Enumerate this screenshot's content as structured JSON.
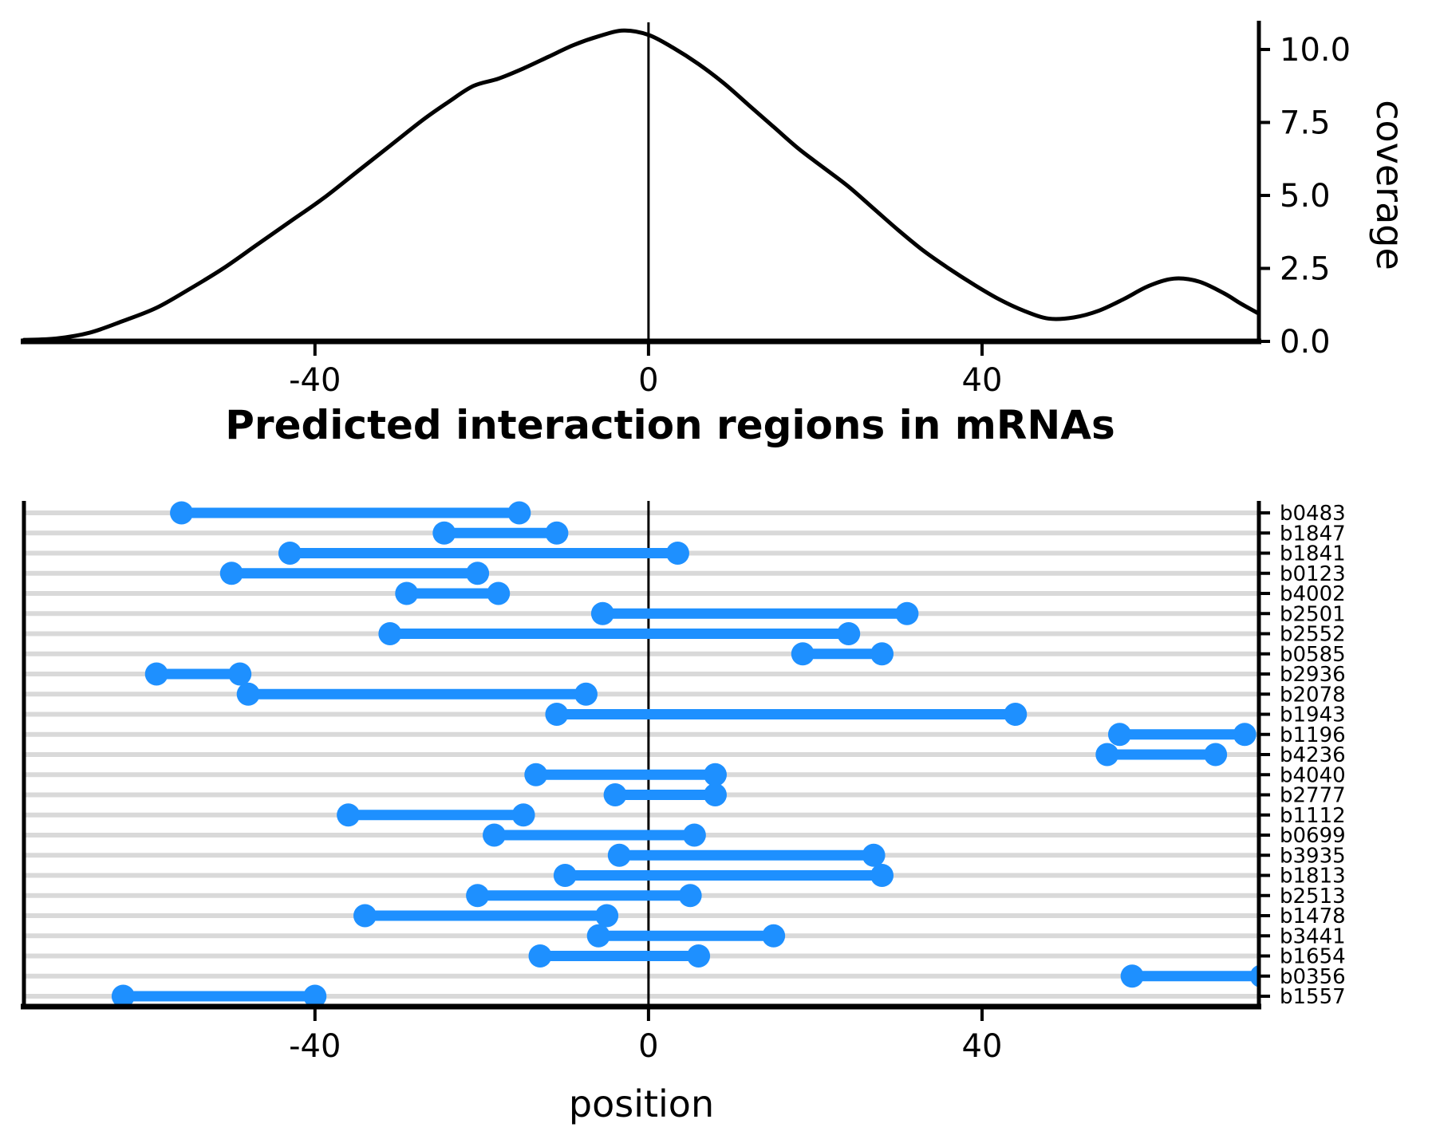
{
  "figure": {
    "background": "#ffffff"
  },
  "colors": {
    "segment_blue": "#1e90ff",
    "gridline_gray": "#d9d9d9",
    "axis_black": "#000000"
  },
  "chart_data": [
    {
      "type": "line",
      "name": "coverage-density",
      "title": "",
      "ylabel": "coverage",
      "xlim": [
        -74.9,
        73.2
      ],
      "ylim": [
        0,
        10.93
      ],
      "grid": false,
      "x_tick_values": [
        -40,
        0,
        40
      ],
      "x_tick_labels": [
        "-40",
        "0",
        "40"
      ],
      "y_tick_values": [
        0.0,
        2.5,
        5.0,
        7.5,
        10.0
      ],
      "y_tick_labels": [
        "0.0",
        "2.5",
        "5.0",
        "7.5",
        "10.0"
      ],
      "zero_line_x": 0,
      "x": [
        -74.9,
        -71,
        -67,
        -63,
        -59,
        -55,
        -51,
        -47,
        -43,
        -39,
        -35,
        -31,
        -27,
        -24,
        -21,
        -18,
        -15,
        -12,
        -9,
        -6,
        -3,
        0,
        3,
        6,
        9,
        12,
        15,
        18,
        21,
        24,
        27,
        30,
        33,
        36,
        39,
        42,
        45,
        48,
        51,
        54,
        57,
        60,
        63,
        66,
        69,
        71,
        73.2
      ],
      "y": [
        0.05,
        0.1,
        0.3,
        0.7,
        1.15,
        1.8,
        2.5,
        3.3,
        4.1,
        4.9,
        5.8,
        6.7,
        7.6,
        8.2,
        8.75,
        9.0,
        9.35,
        9.75,
        10.15,
        10.45,
        10.65,
        10.5,
        10.05,
        9.5,
        8.85,
        8.1,
        7.35,
        6.6,
        5.95,
        5.3,
        4.55,
        3.8,
        3.1,
        2.5,
        1.95,
        1.45,
        1.05,
        0.78,
        0.82,
        1.05,
        1.45,
        1.9,
        2.15,
        2.05,
        1.65,
        1.3,
        0.95
      ]
    },
    {
      "type": "segment-range",
      "name": "interaction-regions",
      "title": "Predicted interaction regions in mRNAs",
      "xlabel": "position",
      "xlim": [
        -74.9,
        73.2
      ],
      "x_tick_values": [
        -40,
        0,
        40
      ],
      "x_tick_labels": [
        "-40",
        "0",
        "40"
      ],
      "zero_line_x": 0,
      "rows": [
        {
          "label": "b0483",
          "start": -56,
          "end": -15.5
        },
        {
          "label": "b1847",
          "start": -24.5,
          "end": -11
        },
        {
          "label": "b1841",
          "start": -43,
          "end": 3.5
        },
        {
          "label": "b0123",
          "start": -50,
          "end": -20.5
        },
        {
          "label": "b4002",
          "start": -29,
          "end": -18
        },
        {
          "label": "b2501",
          "start": -5.5,
          "end": 31
        },
        {
          "label": "b2552",
          "start": -31,
          "end": 24
        },
        {
          "label": "b0585",
          "start": 18.5,
          "end": 28
        },
        {
          "label": "b2936",
          "start": -59,
          "end": -49
        },
        {
          "label": "b2078",
          "start": -48,
          "end": -7.5
        },
        {
          "label": "b1943",
          "start": -11,
          "end": 44
        },
        {
          "label": "b1196",
          "start": 56.5,
          "end": 71.5
        },
        {
          "label": "b4236",
          "start": 55,
          "end": 68
        },
        {
          "label": "b4040",
          "start": -13.5,
          "end": 8
        },
        {
          "label": "b2777",
          "start": -4,
          "end": 8
        },
        {
          "label": "b1112",
          "start": -36,
          "end": -15
        },
        {
          "label": "b0699",
          "start": -18.5,
          "end": 5.5
        },
        {
          "label": "b3935",
          "start": -3.5,
          "end": 27
        },
        {
          "label": "b1813",
          "start": -10,
          "end": 28
        },
        {
          "label": "b2513",
          "start": -20.5,
          "end": 5
        },
        {
          "label": "b1478",
          "start": -34,
          "end": -5
        },
        {
          "label": "b3441",
          "start": -6,
          "end": 15
        },
        {
          "label": "b1654",
          "start": -13,
          "end": 6
        },
        {
          "label": "b0356",
          "start": 58,
          "end": 73.5
        },
        {
          "label": "b1557",
          "start": -63,
          "end": -40
        }
      ]
    }
  ]
}
